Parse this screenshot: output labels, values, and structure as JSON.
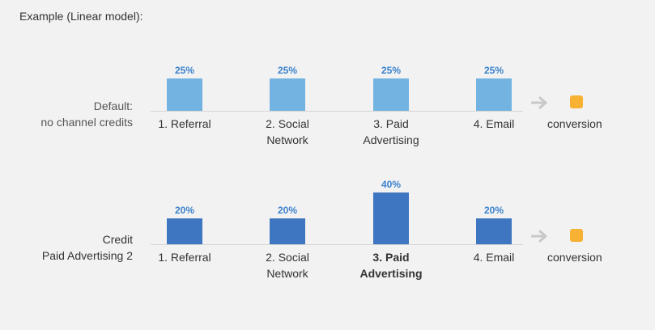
{
  "heading": "Example (Linear model):",
  "rows": [
    {
      "label_line1": "Default:",
      "label_line2": "no channel credits",
      "style": "light",
      "channels": [
        {
          "name_line1": "1. Referral",
          "name_line2": "",
          "pct": "25%",
          "value": 25,
          "bold": false
        },
        {
          "name_line1": "2. Social",
          "name_line2": "Network",
          "pct": "25%",
          "value": 25,
          "bold": false
        },
        {
          "name_line1": "3. Paid",
          "name_line2": "Advertising",
          "pct": "25%",
          "value": 25,
          "bold": false
        },
        {
          "name_line1": "4. Email",
          "name_line2": "",
          "pct": "25%",
          "value": 25,
          "bold": false
        }
      ],
      "conversion": "conversion"
    },
    {
      "label_line1": "Credit",
      "label_line2": "Paid Advertising 2",
      "style": "dark",
      "channels": [
        {
          "name_line1": "1. Referral",
          "name_line2": "",
          "pct": "20%",
          "value": 20,
          "bold": false
        },
        {
          "name_line1": "2. Social",
          "name_line2": "Network",
          "pct": "20%",
          "value": 20,
          "bold": false
        },
        {
          "name_line1": "3. Paid",
          "name_line2": "Advertising",
          "pct": "40%",
          "value": 40,
          "bold": true
        },
        {
          "name_line1": "4. Email",
          "name_line2": "",
          "pct": "20%",
          "value": 20,
          "bold": false
        }
      ],
      "conversion": "conversion"
    }
  ],
  "colors": {
    "light_bar": "#72b3e2",
    "dark_bar": "#3f76c1",
    "pct_text": "#3c82cc",
    "conversion_dot": "#f7b133",
    "arrow": "#c8c8c8"
  },
  "icons": {
    "arrow": "arrow-right-icon",
    "conversion": "conversion-square-icon"
  }
}
